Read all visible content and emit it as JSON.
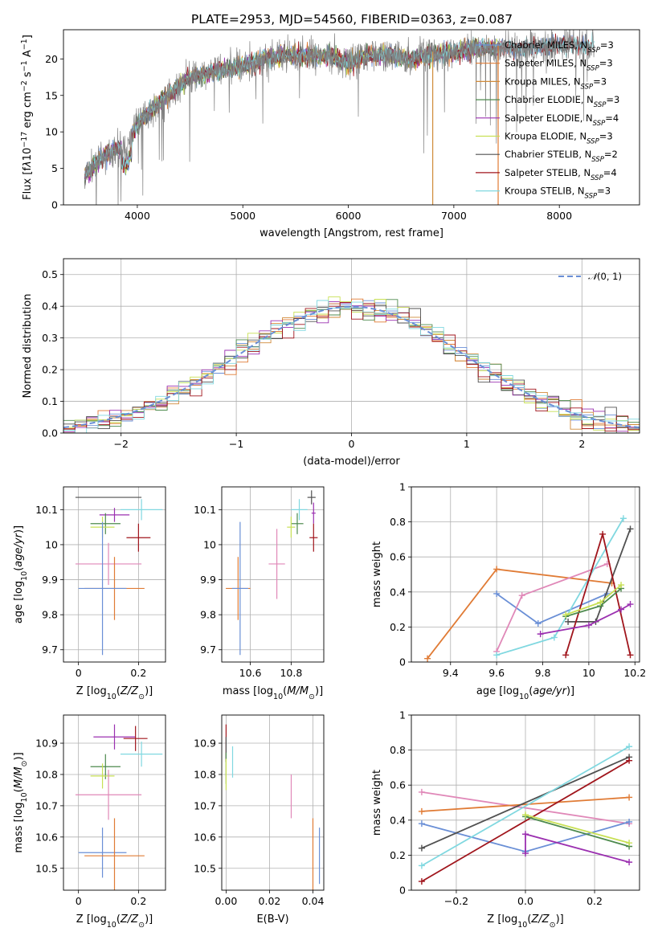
{
  "chart_data": [
    {
      "id": "spectrum",
      "type": "line",
      "title": "PLATE=2953, MJD=54560, FIBERID=0363, z=0.087",
      "xlabel": "wavelength [Angstrom, rest frame]",
      "ylabel": "Flux [f_λ 10^-17 erg cm^-2 s^-1 A^-1]",
      "xlim": [
        3300,
        8760
      ],
      "ylim": [
        0,
        24
      ],
      "xticks": [
        4000,
        5000,
        6000,
        7000,
        8000
      ],
      "yticks": [
        0,
        5,
        10,
        15,
        20
      ],
      "grid": false,
      "legend_position": "right",
      "legend": [
        {
          "label": "Chabrier MILES, N_SSP=3",
          "color": "#6a8fd6"
        },
        {
          "label": "Salpeter MILES, N_SSP=3",
          "color": "#e07b35"
        },
        {
          "label": "Kroupa MILES, N_SSP=3",
          "color": "#d08a3a"
        },
        {
          "label": "Chabrier ELODIE, N_SSP=3",
          "color": "#4d8a4d"
        },
        {
          "label": "Salpeter ELODIE, N_SSP=4",
          "color": "#9b30b0"
        },
        {
          "label": "Kroupa ELODIE, N_SSP=3",
          "color": "#c8e055"
        },
        {
          "label": "Chabrier STELIB, N_SSP=2",
          "color": "#505050"
        },
        {
          "label": "Salpeter STELIB, N_SSP=4",
          "color": "#a0151c"
        },
        {
          "label": "Kroupa STELIB, N_SSP=3",
          "color": "#80d8e0"
        }
      ],
      "continuum": {
        "x": [
          3500,
          3700,
          3900,
          4000,
          4200,
          4500,
          4800,
          5000,
          5200,
          5400,
          5600,
          5800,
          6000,
          6200,
          6400,
          6600,
          6800,
          7000,
          7200,
          7400,
          7600,
          7800,
          8000,
          8200,
          8300
        ],
        "y": [
          4,
          7,
          8,
          11,
          14,
          17.5,
          18.5,
          19,
          20,
          20.5,
          20.5,
          20.5,
          19.5,
          20.5,
          20.5,
          20,
          20.5,
          21,
          21.5,
          21.5,
          21.5,
          21.5,
          22,
          22,
          22
        ]
      }
    },
    {
      "id": "residuals",
      "type": "line",
      "title": "",
      "xlabel": "(data-model)/error",
      "ylabel": "Normed distribution",
      "xlim": [
        -2.5,
        2.5
      ],
      "ylim": [
        0,
        0.55
      ],
      "xticks": [
        -2,
        -1,
        0,
        1,
        2
      ],
      "xtick_labels": [
        "−2",
        "−1",
        "0",
        "1",
        "2"
      ],
      "yticks": [
        0.0,
        0.1,
        0.2,
        0.3,
        0.4,
        0.5
      ],
      "ytick_labels": [
        "0.0",
        "0.1",
        "0.2",
        "0.3",
        "0.4",
        "0.5"
      ],
      "grid": true,
      "legend_position": "top-right",
      "reference_curve": {
        "label": "N(0,1)",
        "color": "#6a8fd6",
        "style": "dashed"
      },
      "histogram_bin_width": 0.1
    },
    {
      "id": "age-vs-Z",
      "type": "scatter",
      "xlabel": "Z [log10(Z/Z⊙)]",
      "ylabel": "age  [log10(age/yr)]",
      "xlim": [
        -0.05,
        0.29
      ],
      "ylim": [
        9.665,
        10.165
      ],
      "xticks": [
        0.0,
        0.2
      ],
      "yticks": [
        9.7,
        9.8,
        9.9,
        10.0,
        10.1
      ],
      "grid": true,
      "points": [
        {
          "x": 0.1,
          "y": 10.135,
          "xerr": 0.11,
          "yerr": 0.0,
          "color": "#505050"
        },
        {
          "x": 0.21,
          "y": 10.1,
          "xerr": 0.07,
          "yerr": 0.03,
          "color": "#80d8e0"
        },
        {
          "x": 0.12,
          "y": 10.085,
          "xerr": 0.05,
          "yerr": 0.02,
          "color": "#9b30b0"
        },
        {
          "x": 0.09,
          "y": 10.06,
          "xerr": 0.05,
          "yerr": 0.03,
          "color": "#4d8a4d"
        },
        {
          "x": 0.08,
          "y": 10.05,
          "xerr": 0.04,
          "yerr": 0.03,
          "color": "#c8e055"
        },
        {
          "x": 0.2,
          "y": 10.02,
          "xerr": 0.04,
          "yerr": 0.04,
          "color": "#a0151c"
        },
        {
          "x": 0.1,
          "y": 9.945,
          "xerr": 0.11,
          "yerr": 0.06,
          "color": "#e088b8"
        },
        {
          "x": 0.12,
          "y": 9.875,
          "xerr": 0.1,
          "yerr": 0.09,
          "color": "#e07b35"
        },
        {
          "x": 0.08,
          "y": 9.875,
          "xerr": 0.08,
          "yerr": 0.19,
          "color": "#6a8fd6"
        }
      ]
    },
    {
      "id": "age-vs-mass",
      "type": "scatter",
      "xlabel": "mass [log10(M/M⊙)]",
      "ylabel": "",
      "xlim": [
        10.46,
        10.96
      ],
      "ylim": [
        9.665,
        10.165
      ],
      "xticks": [
        10.6,
        10.8
      ],
      "yticks": [
        9.7,
        9.8,
        9.9,
        10.0,
        10.1
      ],
      "grid": true,
      "points": [
        {
          "x": 10.9,
          "y": 10.135,
          "xerr": 0.02,
          "yerr": 0.02,
          "color": "#505050"
        },
        {
          "x": 10.84,
          "y": 10.1,
          "xerr": 0.04,
          "yerr": 0.03,
          "color": "#80d8e0"
        },
        {
          "x": 10.91,
          "y": 10.09,
          "xerr": 0.01,
          "yerr": 0.03,
          "color": "#9b30b0"
        },
        {
          "x": 10.83,
          "y": 10.06,
          "xerr": 0.03,
          "yerr": 0.03,
          "color": "#4d8a4d"
        },
        {
          "x": 10.8,
          "y": 10.05,
          "xerr": 0.02,
          "yerr": 0.03,
          "color": "#c8e055"
        },
        {
          "x": 10.91,
          "y": 10.02,
          "xerr": 0.02,
          "yerr": 0.04,
          "color": "#a0151c"
        },
        {
          "x": 10.73,
          "y": 9.945,
          "xerr": 0.04,
          "yerr": 0.1,
          "color": "#e088b8"
        },
        {
          "x": 10.54,
          "y": 9.875,
          "xerr": 0.06,
          "yerr": 0.09,
          "color": "#e07b35"
        },
        {
          "x": 10.55,
          "y": 9.875,
          "xerr": 0.04,
          "yerr": 0.19,
          "color": "#6a8fd6"
        }
      ]
    },
    {
      "id": "mass-weight-vs-age",
      "type": "line",
      "xlabel": "age  [log10(age/yr)]",
      "ylabel": "mass weight",
      "xlim": [
        9.23,
        10.22
      ],
      "ylim": [
        0.0,
        1.0
      ],
      "xticks": [
        9.4,
        9.6,
        9.8,
        10.0,
        10.2
      ],
      "yticks": [
        0.0,
        0.2,
        0.4,
        0.6,
        0.8,
        1.0
      ],
      "grid": true,
      "series": [
        {
          "color": "#e07b35",
          "x": [
            9.3,
            9.6,
            10.1
          ],
          "y": [
            0.02,
            0.53,
            0.45
          ]
        },
        {
          "color": "#6a8fd6",
          "x": [
            9.6,
            9.78,
            10.08
          ],
          "y": [
            0.39,
            0.22,
            0.39
          ]
        },
        {
          "color": "#e088b8",
          "x": [
            9.6,
            9.71,
            10.08
          ],
          "y": [
            0.06,
            0.38,
            0.56
          ]
        },
        {
          "color": "#80d8e0",
          "x": [
            9.6,
            9.85,
            10.15
          ],
          "y": [
            0.04,
            0.14,
            0.82
          ]
        },
        {
          "color": "#505050",
          "x": [
            9.91,
            10.03,
            10.18
          ],
          "y": [
            0.23,
            0.23,
            0.76
          ]
        },
        {
          "color": "#a0151c",
          "x": [
            9.9,
            10.06,
            10.18
          ],
          "y": [
            0.04,
            0.73,
            0.04
          ]
        },
        {
          "color": "#9b30b0",
          "x": [
            9.79,
            10.0,
            10.14,
            10.18
          ],
          "y": [
            0.16,
            0.21,
            0.3,
            0.33
          ]
        },
        {
          "color": "#4d8a4d",
          "x": [
            9.9,
            10.05,
            10.14
          ],
          "y": [
            0.26,
            0.32,
            0.42
          ]
        },
        {
          "color": "#c8e055",
          "x": [
            9.9,
            10.05,
            10.14
          ],
          "y": [
            0.27,
            0.34,
            0.44
          ]
        }
      ]
    },
    {
      "id": "mass-vs-Z",
      "type": "scatter",
      "xlabel": "Z [log10(Z/Z⊙)]",
      "ylabel": "mass [log10(M/M⊙)]",
      "xlim": [
        -0.05,
        0.29
      ],
      "ylim": [
        10.43,
        10.99
      ],
      "xticks": [
        0.0,
        0.2
      ],
      "yticks": [
        10.5,
        10.6,
        10.7,
        10.8,
        10.9
      ],
      "grid": true,
      "points": [
        {
          "x": 0.12,
          "y": 10.92,
          "xerr": 0.07,
          "yerr": 0.04,
          "color": "#9b30b0"
        },
        {
          "x": 0.19,
          "y": 10.915,
          "xerr": 0.04,
          "yerr": 0.04,
          "color": "#a0151c"
        },
        {
          "x": 0.21,
          "y": 10.865,
          "xerr": 0.07,
          "yerr": 0.04,
          "color": "#80d8e0"
        },
        {
          "x": 0.09,
          "y": 10.825,
          "xerr": 0.05,
          "yerr": 0.04,
          "color": "#4d8a4d"
        },
        {
          "x": 0.08,
          "y": 10.795,
          "xerr": 0.04,
          "yerr": 0.04,
          "color": "#c8e055"
        },
        {
          "x": 0.1,
          "y": 10.735,
          "xerr": 0.11,
          "yerr": 0.08,
          "color": "#e088b8"
        },
        {
          "x": 0.08,
          "y": 10.55,
          "xerr": 0.08,
          "yerr": 0.08,
          "color": "#6a8fd6"
        },
        {
          "x": 0.12,
          "y": 10.54,
          "xerr": 0.1,
          "yerr": 0.12,
          "color": "#e07b35"
        }
      ]
    },
    {
      "id": "mass-vs-EBV",
      "type": "scatter",
      "xlabel": "E(B-V)",
      "ylabel": "",
      "xlim": [
        -0.002,
        0.045
      ],
      "ylim": [
        10.43,
        10.99
      ],
      "xticks": [
        0.0,
        0.02,
        0.04
      ],
      "xtick_labels": [
        "0.00",
        "0.02",
        "0.04"
      ],
      "yticks": [
        10.5,
        10.6,
        10.7,
        10.8,
        10.9
      ],
      "grid": true,
      "points": [
        {
          "x": 0.0,
          "y": 10.9,
          "yerr": 0.06,
          "color": "#a0151c"
        },
        {
          "x": 0.0,
          "y": 10.88,
          "yerr": 0.04,
          "color": "#505050"
        },
        {
          "x": 0.0,
          "y": 10.82,
          "yerr": 0.05,
          "color": "#4d8a4d"
        },
        {
          "x": 0.0,
          "y": 10.8,
          "yerr": 0.05,
          "color": "#c8e055"
        },
        {
          "x": 0.003,
          "y": 10.84,
          "yerr": 0.05,
          "color": "#80d8e0"
        },
        {
          "x": 0.03,
          "y": 10.73,
          "yerr": 0.07,
          "color": "#e088b8"
        },
        {
          "x": 0.04,
          "y": 10.54,
          "yerr": 0.12,
          "color": "#e07b35"
        },
        {
          "x": 0.043,
          "y": 10.54,
          "yerr": 0.09,
          "color": "#6a8fd6"
        }
      ]
    },
    {
      "id": "mass-weight-vs-Z",
      "type": "line",
      "xlabel": "Z [log10(Z/Z⊙)]",
      "ylabel": "mass weight",
      "xlim": [
        -0.33,
        0.33
      ],
      "ylim": [
        0.0,
        1.0
      ],
      "xticks": [
        -0.2,
        0.0,
        0.2
      ],
      "xtick_labels": [
        "−0.2",
        "0.0",
        "0.2"
      ],
      "yticks": [
        0.0,
        0.2,
        0.4,
        0.6,
        0.8,
        1.0
      ],
      "grid": true,
      "series": [
        {
          "color": "#e088b8",
          "x": [
            -0.3,
            0.3
          ],
          "y": [
            0.56,
            0.38
          ]
        },
        {
          "color": "#e07b35",
          "x": [
            -0.3,
            0.3
          ],
          "y": [
            0.45,
            0.53
          ]
        },
        {
          "color": "#6a8fd6",
          "x": [
            -0.3,
            0.0,
            0.3
          ],
          "y": [
            0.38,
            0.22,
            0.39
          ]
        },
        {
          "color": "#505050",
          "x": [
            -0.3,
            0.3
          ],
          "y": [
            0.24,
            0.76
          ]
        },
        {
          "color": "#80d8e0",
          "x": [
            -0.3,
            0.3
          ],
          "y": [
            0.14,
            0.82
          ]
        },
        {
          "color": "#a0151c",
          "x": [
            -0.3,
            0.3
          ],
          "y": [
            0.05,
            0.74
          ]
        },
        {
          "color": "#9b30b0",
          "x": [
            0.0,
            0.0,
            0.3
          ],
          "y": [
            0.21,
            0.32,
            0.16
          ]
        },
        {
          "color": "#4d8a4d",
          "x": [
            0.0,
            0.3
          ],
          "y": [
            0.42,
            0.25
          ]
        },
        {
          "color": "#c8e055",
          "x": [
            0.0,
            0.3
          ],
          "y": [
            0.43,
            0.27
          ]
        }
      ]
    }
  ]
}
